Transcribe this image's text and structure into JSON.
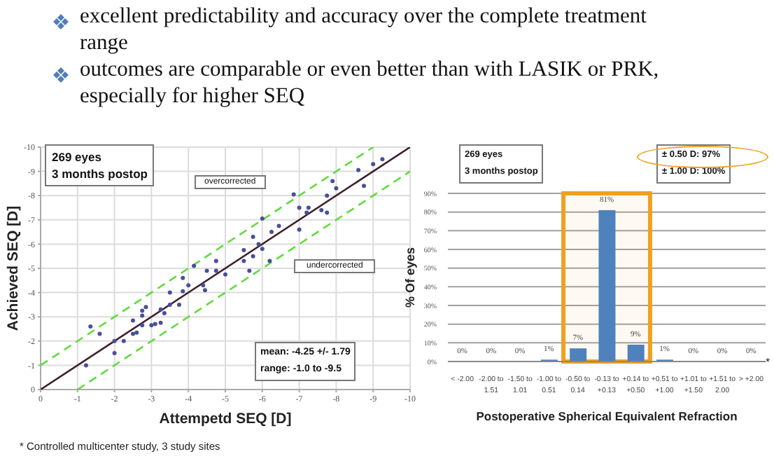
{
  "chart_data": [
    {
      "type": "other",
      "annotations": [
        "excellent predictability and accuracy over the complete treatment range",
        "outcomes are comparable or even better than with LASIK or PRK, especially for higher SEQ",
        "* Controlled multicenter study, 3 study sites"
      ]
    },
    {
      "type": "scatter",
      "xlabel": "Attempetd SEQ [D]",
      "ylabel": "Achieved SEQ [D]",
      "xlim": [
        0,
        -10
      ],
      "ylim": [
        0,
        -10
      ],
      "xticks": [
        0,
        -1,
        -2,
        -3,
        -4,
        -5,
        -6,
        -7,
        -8,
        -9,
        -10
      ],
      "yticks": [
        0,
        -1,
        -2,
        -3,
        -4,
        -5,
        -6,
        -7,
        -8,
        -9,
        -10
      ],
      "grid": true,
      "annotations": [
        "269 eyes",
        "3 months postop",
        "overcorrected",
        "undercorrected",
        "mean: -4.25 +/- 1.79",
        "range: -1.0 to -9.5"
      ],
      "series": [
        {
          "type": "scatter",
          "color": "#4a4f9a",
          "marker": "circle",
          "x": [
            -1.35,
            -1.23,
            -1.6,
            -2.0,
            -2.0,
            -2.25,
            -2.5,
            -2.5,
            -2.6,
            -2.75,
            -2.75,
            -2.75,
            -2.85,
            -3.0,
            -3.1,
            -3.25,
            -3.25,
            -3.35,
            -3.5,
            -3.5,
            -3.75,
            -3.85,
            -3.85,
            -4.0,
            -4.15,
            -4.4,
            -4.45,
            -4.5,
            -4.75,
            -4.75,
            -5.0,
            -5.5,
            -5.5,
            -5.65,
            -5.75,
            -5.75,
            -5.9,
            -6.0,
            -6.0,
            -6.2,
            -6.25,
            -6.45,
            -6.85,
            -7.0,
            -7.0,
            -7.2,
            -7.25,
            -7.6,
            -7.75,
            -7.75,
            -7.9,
            -8.0,
            -8.6,
            -8.75,
            -9.0,
            -9.25
          ],
          "values": [
            -2.6,
            -1.0,
            -2.3,
            -1.5,
            -2.0,
            -2.0,
            -2.85,
            -2.3,
            -2.35,
            -3.25,
            -3.05,
            -2.65,
            -3.4,
            -2.65,
            -2.7,
            -3.3,
            -2.75,
            -3.15,
            -4.0,
            -3.5,
            -3.5,
            -4.05,
            -4.6,
            -4.3,
            -5.1,
            -4.3,
            -4.1,
            -4.9,
            -5.3,
            -4.9,
            -4.75,
            -5.75,
            -5.3,
            -4.9,
            -6.3,
            -5.5,
            -6.0,
            -7.05,
            -5.8,
            -5.3,
            -6.5,
            -6.75,
            -8.05,
            -7.5,
            -6.6,
            -7.3,
            -7.5,
            -7.4,
            -7.3,
            -8.0,
            -8.6,
            -8.3,
            -9.05,
            -8.4,
            -9.3,
            -9.5
          ]
        },
        {
          "type": "line",
          "color": "#3b1f2b",
          "marker": "none",
          "line_style": "solid",
          "x": [
            0,
            -10
          ],
          "values": [
            0,
            -10
          ]
        },
        {
          "type": "line",
          "color": "#5fdc3c",
          "marker": "none",
          "line_style": "dashed",
          "x": [
            0,
            -9
          ],
          "values": [
            -1,
            -10
          ]
        },
        {
          "type": "line",
          "color": "#5fdc3c",
          "marker": "none",
          "line_style": "dashed",
          "x": [
            -1,
            -10
          ],
          "values": [
            0,
            -9
          ]
        }
      ]
    },
    {
      "type": "bar",
      "xlabel": "Postoperative Spherical Equivalent Refraction",
      "ylabel": "% Of eyes",
      "color": "#4f81bd",
      "grid": "y",
      "categories": [
        "< -2.00",
        "-2.00 to 1.51",
        "-1.50 to 1.01",
        "-1.00 to 0.51",
        "-0.50 to 0.14",
        "-0.13 to +0.13",
        "+0.14 to +0.50",
        "+0.51 to +1.00",
        "+1.01 to +1.50",
        "+1.51 to 2.00",
        "> +2.00"
      ],
      "values": [
        0,
        0,
        0,
        1,
        7,
        81,
        9,
        1,
        0,
        0,
        0
      ],
      "value_labels": [
        "0%",
        "0%",
        "0%",
        "1%",
        "7%",
        "81%",
        "9%",
        "1%",
        "0%",
        "0%",
        "0%"
      ],
      "ylim": [
        0,
        90
      ],
      "yticks": [
        {
          "value": 0,
          "label": "0%"
        },
        {
          "value": 10,
          "label": "10%"
        },
        {
          "value": 20,
          "label": "20%"
        },
        {
          "value": 30,
          "label": "30%"
        },
        {
          "value": 40,
          "label": "40%"
        },
        {
          "value": 50,
          "label": "50%"
        },
        {
          "value": 60,
          "label": "60%"
        },
        {
          "value": 70,
          "label": "70%"
        },
        {
          "value": 80,
          "label": "80%"
        },
        {
          "value": 90,
          "label": "90%"
        }
      ],
      "bands": [
        {
          "axis": "x",
          "from": "-0.50 to 0.14",
          "to": "+0.14 to +0.50",
          "color": "#f0a020"
        }
      ],
      "annotations": [
        "269 eyes",
        "3 months postop",
        "± 0.50 D: 97%",
        "± 1.00 D: 100%",
        "*"
      ]
    }
  ]
}
